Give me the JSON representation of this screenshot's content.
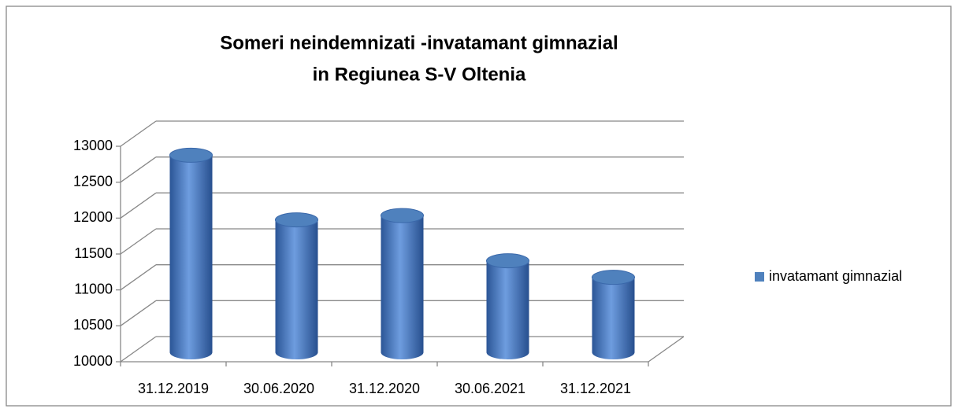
{
  "chart_data": {
    "type": "bar3d",
    "title": [
      "Someri  neindemnizati -invatamant gimnazial",
      "in Regiunea S-V Oltenia"
    ],
    "categories": [
      "31.12.2019",
      "30.06.2020",
      "31.12.2020",
      "30.06.2021",
      "31.12.2021"
    ],
    "series": [
      {
        "name": "invatamant gimnazial",
        "color": "#4f81bd",
        "values": [
          12700,
          11800,
          11860,
          11230,
          11000
        ]
      }
    ],
    "ylim": [
      10000,
      13000
    ],
    "yticks": [
      10000,
      10500,
      11000,
      11500,
      12000,
      12500,
      13000
    ],
    "grid": true,
    "legend": "right"
  }
}
